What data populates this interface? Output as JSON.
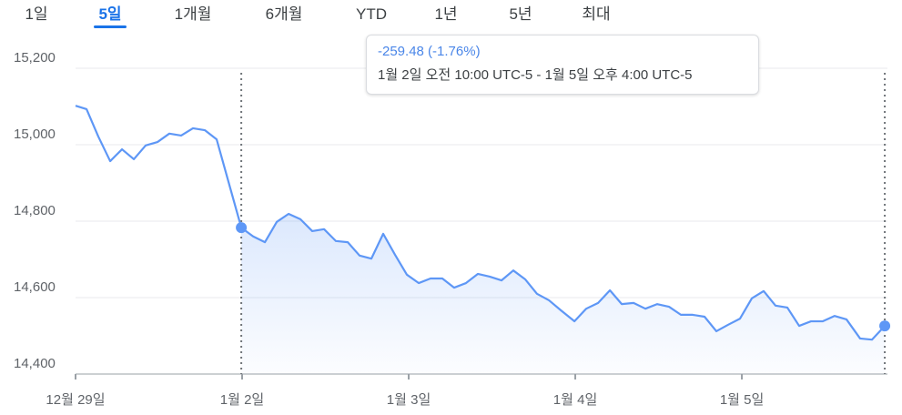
{
  "tabs": [
    "1일",
    "5일",
    "1개월",
    "6개월",
    "YTD",
    "1년",
    "5년",
    "최대"
  ],
  "selected_tab": 1,
  "tooltip": {
    "change": "-259.48 (-1.76%)",
    "range": "1월 2일 오전 10:00 UTC-5 - 1월 5일 오후 4:00 UTC-5"
  },
  "chart_data": {
    "type": "line",
    "x": [
      0,
      0.066,
      0.137,
      0.208,
      0.279,
      0.35,
      0.421,
      0.492,
      0.563,
      0.634,
      0.705,
      0.776,
      0.847,
      0.995,
      1.066,
      1.137,
      1.208,
      1.279,
      1.35,
      1.421,
      1.492,
      1.563,
      1.634,
      1.705,
      1.776,
      1.847,
      1.918,
      1.989,
      2.06,
      2.131,
      2.202,
      2.273,
      2.344,
      2.415,
      2.486,
      2.557,
      2.628,
      2.699,
      2.77,
      2.842,
      2.913,
      2.995,
      3.066,
      3.137,
      3.208,
      3.279,
      3.35,
      3.421,
      3.492,
      3.563,
      3.634,
      3.705,
      3.776,
      3.847,
      3.918,
      3.989,
      4.06,
      4.131,
      4.202,
      4.273,
      4.344,
      4.415,
      4.486,
      4.557,
      4.628,
      4.71,
      4.781,
      4.858
    ],
    "series": [
      {
        "color": "#5e97f6",
        "values": [
          15102,
          15093,
          15021,
          14957,
          14988,
          14962,
          14998,
          15007,
          15029,
          15024,
          15043,
          15038,
          15014,
          14783,
          14760,
          14745,
          14798,
          14819,
          14805,
          14774,
          14779,
          14748,
          14745,
          14710,
          14702,
          14767,
          14712,
          14660,
          14638,
          14650,
          14650,
          14626,
          14638,
          14662,
          14655,
          14645,
          14671,
          14648,
          14610,
          14593,
          14567,
          14538,
          14571,
          14586,
          14619,
          14583,
          14586,
          14571,
          14583,
          14576,
          14555,
          14555,
          14550,
          14512,
          14529,
          14545,
          14598,
          14617,
          14579,
          14574,
          14526,
          14538,
          14538,
          14552,
          14543,
          14493,
          14490,
          14526
        ]
      }
    ],
    "range_start": 13,
    "xlim": [
      0,
      4.874
    ],
    "xticks": [
      {
        "value": 0,
        "label": "12월 29일"
      },
      {
        "value": 1,
        "label": "1월 2일"
      },
      {
        "value": 2,
        "label": "1월 3일"
      },
      {
        "value": 3,
        "label": "1월 4일"
      },
      {
        "value": 4,
        "label": "1월 5일"
      }
    ],
    "ylim": [
      14400,
      15200
    ],
    "yticks": [
      {
        "value": 14400,
        "label": "14,400"
      },
      {
        "value": 14600,
        "label": "14,600"
      },
      {
        "value": 14800,
        "label": "14,800"
      },
      {
        "value": 15000,
        "label": "15,000"
      },
      {
        "value": 15200,
        "label": "15,200"
      }
    ],
    "grid": true
  }
}
